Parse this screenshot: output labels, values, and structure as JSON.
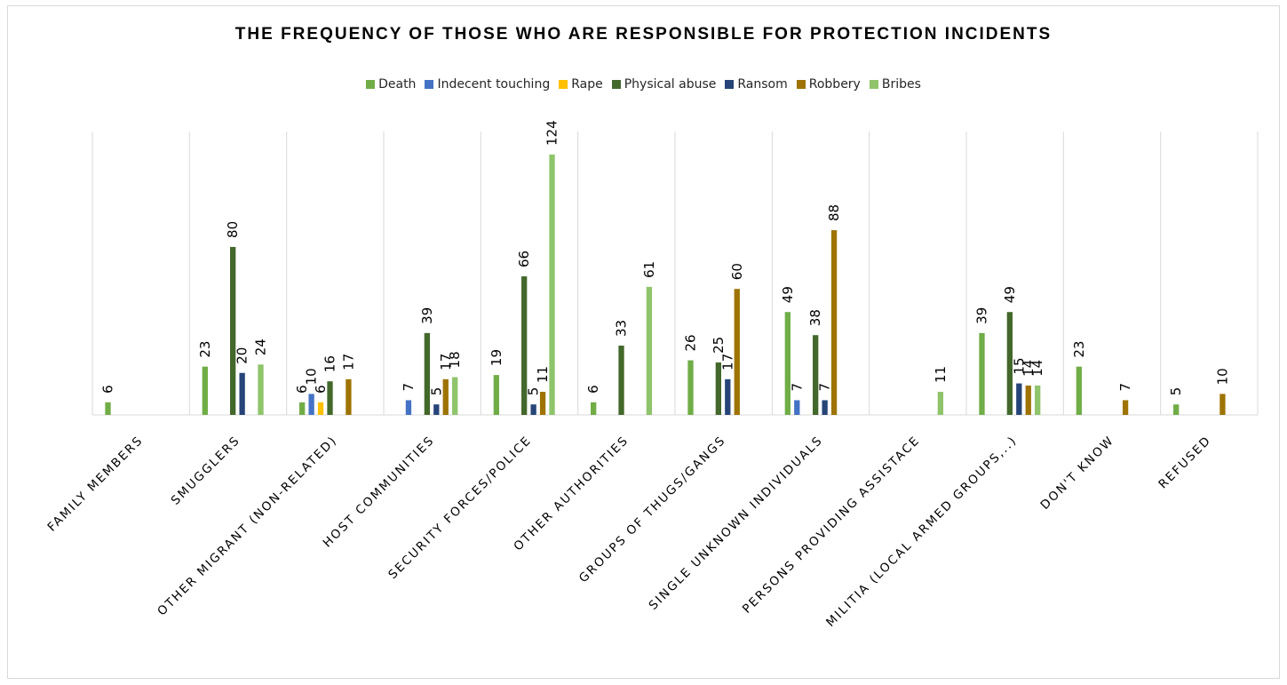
{
  "chart_data": {
    "type": "bar",
    "title": "THE FREQUENCY OF THOSE WHO ARE RESPONSIBLE FOR PROTECTION INCIDENTS",
    "legend_position": "top",
    "grid": "vertical category separators",
    "ylim": [
      0,
      135
    ],
    "categories": [
      "FAMILY MEMBERS",
      "SMUGGLERS",
      "OTHER MIGRANT (NON-RELATED)",
      "HOST COMMUNITIES",
      "SECURITY FORCES/POLICE",
      "OTHER AUTHORITIES",
      "GROUPS OF THUGS/GANGS",
      "SINGLE UNKNOWN INDIVIDUALS",
      "PERSONS PROVIDING ASSISTACE",
      "MILITIA (LOCAL ARMED GROUPS,..)",
      "DON'T KNOW",
      "REFUSED"
    ],
    "series": [
      {
        "name": "Death",
        "color": "#70ad47",
        "values": [
          6,
          23,
          6,
          null,
          19,
          6,
          26,
          49,
          null,
          39,
          23,
          5
        ]
      },
      {
        "name": "Indecent touching",
        "color": "#4472c4",
        "values": [
          null,
          null,
          10,
          7,
          null,
          null,
          null,
          7,
          null,
          null,
          null,
          null
        ]
      },
      {
        "name": "Rape",
        "color": "#ffc000",
        "values": [
          null,
          null,
          6,
          null,
          null,
          null,
          null,
          null,
          null,
          null,
          null,
          null
        ]
      },
      {
        "name": "Physical abuse",
        "color": "#43682b",
        "values": [
          null,
          80,
          16,
          39,
          66,
          33,
          25,
          38,
          null,
          49,
          null,
          null
        ]
      },
      {
        "name": "Ransom",
        "color": "#264478",
        "values": [
          null,
          20,
          null,
          5,
          5,
          null,
          17,
          7,
          null,
          15,
          null,
          null
        ]
      },
      {
        "name": "Robbery",
        "color": "#9e7300",
        "values": [
          null,
          null,
          17,
          17,
          11,
          null,
          60,
          88,
          null,
          14,
          7,
          10
        ]
      },
      {
        "name": "Bribes",
        "color": "#8fc46a",
        "values": [
          null,
          24,
          null,
          18,
          124,
          61,
          null,
          null,
          11,
          14,
          null,
          null
        ]
      }
    ]
  }
}
